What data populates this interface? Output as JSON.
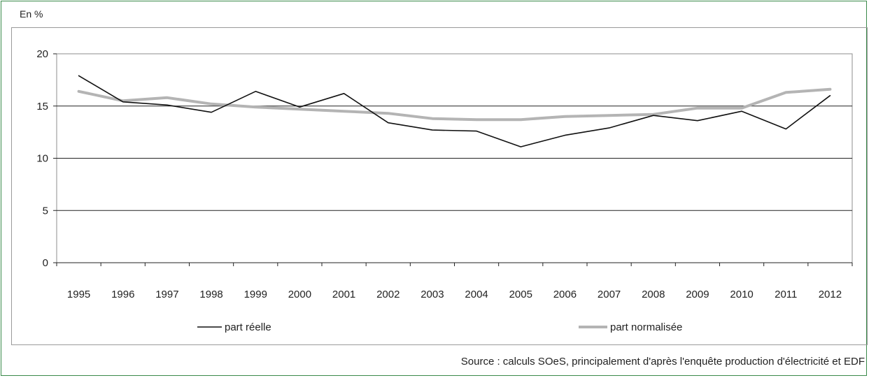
{
  "unit_label": "En %",
  "source": "Source : calculs SOeS, principalement d'après l'enquête production d'électricité et EDF",
  "chart_data": {
    "type": "line",
    "title": "",
    "xlabel": "",
    "ylabel": "En %",
    "ylim": [
      0,
      20
    ],
    "yticks": [
      0,
      5,
      10,
      15,
      20
    ],
    "grid": true,
    "legend_position": "bottom",
    "x": [
      "1995",
      "1996",
      "1997",
      "1998",
      "1999",
      "2000",
      "2001",
      "2002",
      "2003",
      "2004",
      "2005",
      "2006",
      "2007",
      "2008",
      "2009",
      "2010",
      "2011",
      "2012"
    ],
    "series": [
      {
        "name": "part réelle",
        "color": "#111111",
        "values": [
          17.9,
          15.4,
          15.1,
          14.4,
          16.4,
          14.9,
          16.2,
          13.4,
          12.7,
          12.6,
          11.1,
          12.2,
          12.9,
          14.1,
          13.6,
          14.5,
          12.8,
          16.0
        ]
      },
      {
        "name": "part normalisée",
        "color": "#b4b4b4",
        "values": [
          16.4,
          15.5,
          15.8,
          15.2,
          14.9,
          14.7,
          14.5,
          14.3,
          13.8,
          13.7,
          13.7,
          14.0,
          14.1,
          14.2,
          14.8,
          14.8,
          16.3,
          16.6
        ]
      }
    ]
  }
}
